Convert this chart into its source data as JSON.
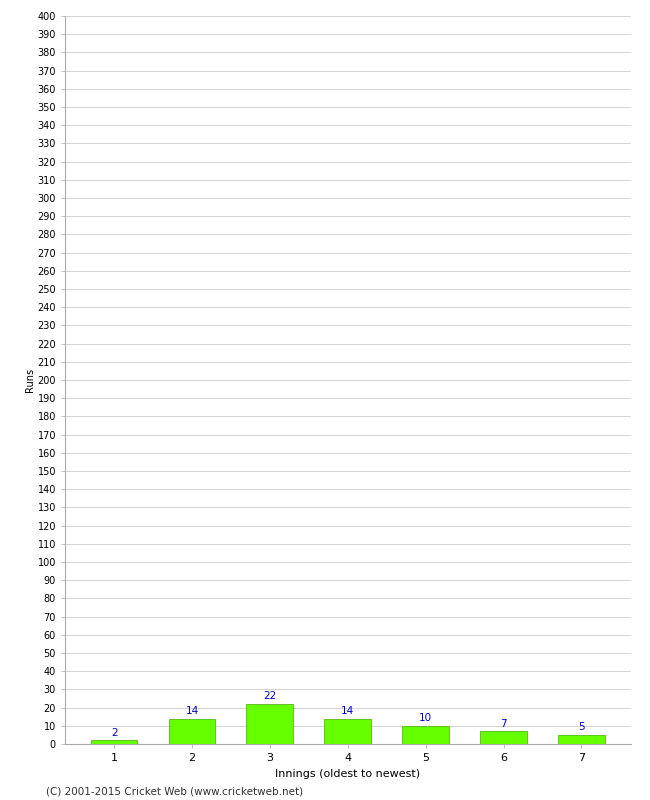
{
  "categories": [
    1,
    2,
    3,
    4,
    5,
    6,
    7
  ],
  "values": [
    2,
    14,
    22,
    14,
    10,
    7,
    5
  ],
  "bar_color": "#66ff00",
  "bar_edge_color": "#44aa00",
  "label_color": "#0000cc",
  "xlabel": "Innings (oldest to newest)",
  "ylabel": "Runs",
  "ylim": [
    0,
    400
  ],
  "ytick_step": 10,
  "footer": "(C) 2001-2015 Cricket Web (www.cricketweb.net)",
  "grid_color": "#cccccc",
  "background_color": "#ffffff",
  "label_fontsize": 7.5,
  "axis_fontsize": 8,
  "ylabel_fontsize": 7,
  "footer_fontsize": 7.5
}
